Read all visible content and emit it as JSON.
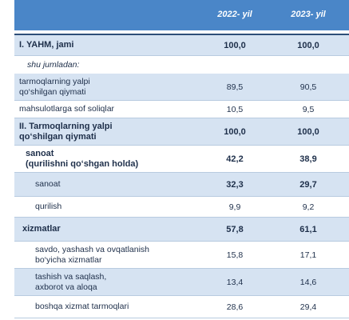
{
  "header": {
    "col1": "2022- yil",
    "col2": "2023- yil"
  },
  "rows": [
    {
      "label": "I. YAHM, jami",
      "v1": "100,0",
      "v2": "100,0"
    },
    {
      "label": "shu jumladan:"
    },
    {
      "label1": "tarmoqlarning yalpi",
      "label2": "qo‘shilgan qiymati",
      "v1": "89,5",
      "v2": "90,5"
    },
    {
      "label": "mahsulotlarga sof soliqlar",
      "v1": "10,5",
      "v2": "9,5"
    },
    {
      "label1": "II. Tarmoqlarning yalpi",
      "label2": "qo‘shilgan qiymati",
      "v1": "100,0",
      "v2": "100,0"
    },
    {
      "label1": "sanoat",
      "label2": "(qurilishni qo‘shgan holda)",
      "v1": "42,2",
      "v2": "38,9"
    },
    {
      "label": "sanoat",
      "v1": "32,3",
      "v2": "29,7"
    },
    {
      "label": "qurilish",
      "v1": "9,9",
      "v2": "9,2"
    },
    {
      "label": "xizmatlar",
      "v1": "57,8",
      "v2": "61,1"
    },
    {
      "label1": "savdo, yashash va ovqatlanish",
      "label2": "bo‘yicha xizmatlar",
      "v1": "15,8",
      "v2": "17,1"
    },
    {
      "label1": "tashish va saqlash,",
      "label2": "axborot va aloqa",
      "v1": "13,4",
      "v2": "14,6"
    },
    {
      "label": "boshqa xizmat tarmoqlari",
      "v1": "28,6",
      "v2": "29,4"
    }
  ]
}
